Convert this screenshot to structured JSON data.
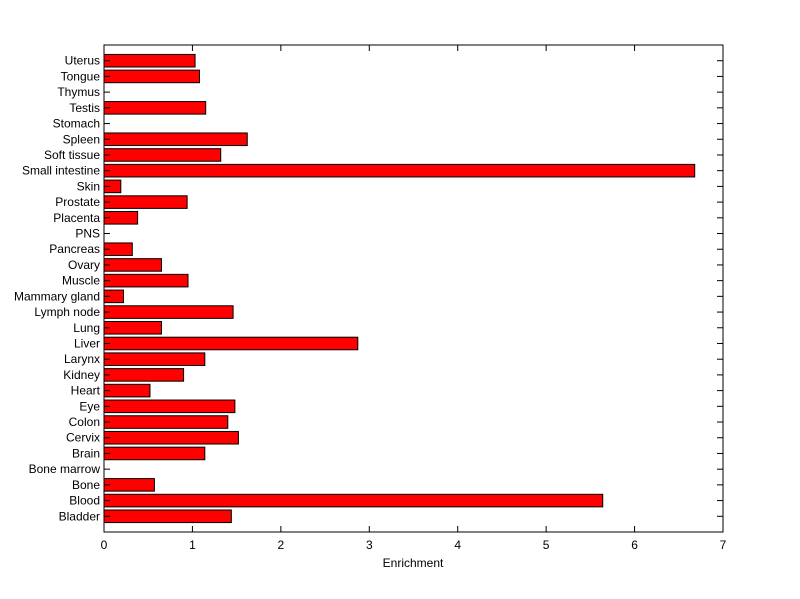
{
  "chart_data": {
    "type": "bar",
    "orientation": "horizontal",
    "title": "",
    "xlabel": "Enrichment",
    "ylabel": "",
    "xlim": [
      0,
      7
    ],
    "xticks": [
      "0",
      "1",
      "2",
      "3",
      "4",
      "5",
      "6",
      "7"
    ],
    "grid": false,
    "legend": "none",
    "bar_color": "#ff0000",
    "bar_edge_color": "#000000",
    "categories": [
      "Bladder",
      "Blood",
      "Bone",
      "Bone marrow",
      "Brain",
      "Cervix",
      "Colon",
      "Eye",
      "Heart",
      "Kidney",
      "Larynx",
      "Liver",
      "Lung",
      "Lymph node",
      "Mammary gland",
      "Muscle",
      "Ovary",
      "Pancreas",
      "PNS",
      "Placenta",
      "Prostate",
      "Skin",
      "Small intestine",
      "Soft tissue",
      "Spleen",
      "Stomach",
      "Testis",
      "Thymus",
      "Tongue",
      "Uterus"
    ],
    "values": [
      1.44,
      5.64,
      0.57,
      0.0,
      1.14,
      1.52,
      1.4,
      1.48,
      0.52,
      0.9,
      1.14,
      2.87,
      0.65,
      1.46,
      0.22,
      0.95,
      0.65,
      0.32,
      0.0,
      0.38,
      0.94,
      0.19,
      6.68,
      1.32,
      1.62,
      0.0,
      1.15,
      0.0,
      1.08,
      1.03
    ]
  }
}
